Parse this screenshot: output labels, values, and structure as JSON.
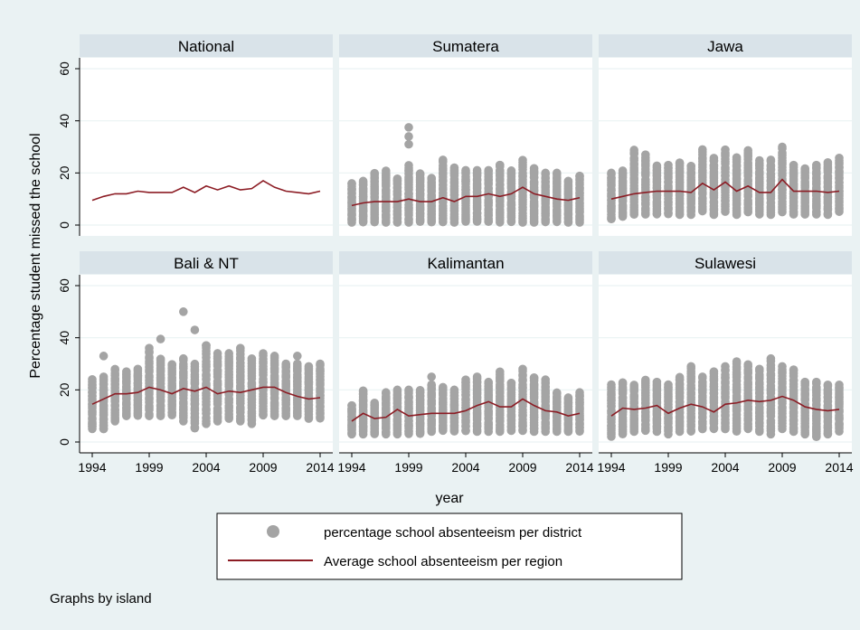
{
  "chart_data": {
    "type": "scatter",
    "ylabel": "Percentage student missed the school",
    "xlabel": "year",
    "xticks": [
      1994,
      1999,
      2004,
      2009,
      2014
    ],
    "yticks": [
      0,
      20,
      40,
      60
    ],
    "xlim": [
      1994,
      2014
    ],
    "ylim": [
      0,
      60
    ],
    "grid": true,
    "legend_position": "bottom",
    "legend": {
      "points_label": "percentage school absenteeism per district",
      "line_label": "Average school absenteeism per region",
      "points_color": "#a4a4a4",
      "line_color": "#8c1c24"
    },
    "note": "Graphs by island",
    "years": [
      1994,
      1995,
      1996,
      1997,
      1998,
      1999,
      2000,
      2001,
      2002,
      2003,
      2004,
      2005,
      2006,
      2007,
      2008,
      2009,
      2010,
      2011,
      2012,
      2013,
      2014
    ],
    "panels": [
      {
        "title": "National",
        "average": [
          9.5,
          11,
          12,
          12,
          13,
          12.5,
          12.5,
          12.5,
          14.5,
          12.5,
          15,
          13.5,
          15,
          13.5,
          14,
          17,
          14.5,
          13,
          12.5,
          12,
          13
        ],
        "points_range": null,
        "outliers": []
      },
      {
        "title": "Sumatera",
        "average": [
          7.5,
          8.5,
          9,
          9,
          9,
          10,
          9,
          9,
          10.5,
          9,
          11,
          11,
          12,
          11,
          12,
          14.5,
          12,
          11,
          10,
          9.5,
          10.5
        ],
        "points_range": [
          [
            1,
            16
          ],
          [
            1,
            17
          ],
          [
            1,
            20
          ],
          [
            1,
            21
          ],
          [
            1,
            18
          ],
          [
            1,
            23
          ],
          [
            1,
            20
          ],
          [
            1,
            18
          ],
          [
            1,
            25
          ],
          [
            1,
            22
          ],
          [
            1,
            21
          ],
          [
            1,
            21
          ],
          [
            1,
            21
          ],
          [
            1,
            23
          ],
          [
            1,
            21
          ],
          [
            1,
            25
          ],
          [
            1,
            22
          ],
          [
            1,
            20
          ],
          [
            1,
            20
          ],
          [
            1,
            17
          ],
          [
            1,
            19
          ]
        ],
        "outliers": [
          [
            1999,
            31
          ],
          [
            1999,
            34
          ],
          [
            1999,
            37.5
          ],
          [
            2002,
            24.5
          ],
          [
            2007,
            23
          ]
        ]
      },
      {
        "title": "Jawa",
        "average": [
          10,
          11,
          12,
          12.5,
          13,
          13,
          13,
          12.5,
          16,
          13.5,
          16.5,
          13,
          15,
          12.5,
          12.5,
          17.5,
          13,
          13,
          13,
          12.5,
          13
        ],
        "points_range": [
          [
            2,
            20
          ],
          [
            3,
            21
          ],
          [
            4,
            29
          ],
          [
            4,
            27
          ],
          [
            4,
            23
          ],
          [
            4,
            23
          ],
          [
            4,
            24
          ],
          [
            4,
            23
          ],
          [
            5,
            29
          ],
          [
            4,
            26
          ],
          [
            5,
            29
          ],
          [
            4,
            26
          ],
          [
            5,
            29
          ],
          [
            4,
            25
          ],
          [
            4,
            25
          ],
          [
            5,
            30
          ],
          [
            4,
            23
          ],
          [
            4,
            22
          ],
          [
            4,
            23
          ],
          [
            4,
            24
          ],
          [
            5,
            26
          ]
        ],
        "outliers": []
      },
      {
        "title": "Bali & NT",
        "average": [
          14.5,
          16.5,
          18.5,
          18.5,
          19,
          21,
          20,
          18.5,
          20.5,
          19.5,
          21,
          18.5,
          19.5,
          19,
          20,
          21,
          21,
          19,
          17.5,
          16.5,
          17
        ],
        "points_range": [
          [
            5,
            24
          ],
          [
            5,
            25
          ],
          [
            8,
            28
          ],
          [
            10,
            27
          ],
          [
            10,
            28
          ],
          [
            10,
            36
          ],
          [
            10,
            32
          ],
          [
            10,
            30
          ],
          [
            8,
            32
          ],
          [
            5,
            30
          ],
          [
            7,
            37
          ],
          [
            8,
            34
          ],
          [
            9,
            34
          ],
          [
            8,
            36
          ],
          [
            7,
            32
          ],
          [
            10,
            34
          ],
          [
            10,
            33
          ],
          [
            10,
            30
          ],
          [
            10,
            30
          ],
          [
            9,
            29
          ],
          [
            9,
            30
          ]
        ],
        "outliers": [
          [
            1994,
            6
          ],
          [
            1995,
            33
          ],
          [
            1995,
            5
          ],
          [
            2000,
            39.5
          ],
          [
            2002,
            50
          ],
          [
            2003,
            43
          ],
          [
            2004,
            37
          ],
          [
            2011,
            30
          ],
          [
            2012,
            33
          ]
        ]
      },
      {
        "title": "Kalimantan",
        "average": [
          8,
          11,
          9,
          9.5,
          12.5,
          10,
          10.5,
          11,
          11,
          11,
          12,
          14,
          15.5,
          13.5,
          13.5,
          16.5,
          14,
          12,
          11.5,
          10,
          11
        ],
        "points_range": [
          [
            3,
            14
          ],
          [
            3,
            20
          ],
          [
            3,
            15
          ],
          [
            3,
            19
          ],
          [
            3,
            20
          ],
          [
            3,
            20
          ],
          [
            3,
            20
          ],
          [
            4,
            22
          ],
          [
            4,
            21
          ],
          [
            4,
            20
          ],
          [
            4,
            24
          ],
          [
            4,
            25
          ],
          [
            4,
            23
          ],
          [
            4,
            27
          ],
          [
            4,
            23
          ],
          [
            4,
            28
          ],
          [
            4,
            25
          ],
          [
            4,
            24
          ],
          [
            4,
            19
          ],
          [
            4,
            17
          ],
          [
            4,
            19
          ]
        ],
        "outliers": [
          [
            2001,
            25
          ],
          [
            2009,
            6
          ]
        ]
      },
      {
        "title": "Sulawesi",
        "average": [
          10,
          13,
          12.5,
          13,
          14,
          11,
          13,
          14.5,
          13.5,
          11.5,
          14.5,
          15,
          16,
          15.5,
          16,
          17.5,
          16,
          13.5,
          12.5,
          12,
          12.5
        ],
        "points_range": [
          [
            2,
            22
          ],
          [
            3,
            23
          ],
          [
            4,
            22
          ],
          [
            4,
            24
          ],
          [
            4,
            23
          ],
          [
            3,
            22
          ],
          [
            4,
            25
          ],
          [
            4,
            29
          ],
          [
            5,
            25
          ],
          [
            5,
            27
          ],
          [
            5,
            29
          ],
          [
            4,
            31
          ],
          [
            5,
            30
          ],
          [
            4,
            28
          ],
          [
            4,
            32
          ],
          [
            5,
            29
          ],
          [
            4,
            28
          ],
          [
            3,
            23
          ],
          [
            2,
            23
          ],
          [
            3,
            22
          ],
          [
            4,
            22
          ]
        ],
        "outliers": [
          [
            2012,
            2
          ],
          [
            2008,
            3
          ]
        ]
      }
    ]
  }
}
